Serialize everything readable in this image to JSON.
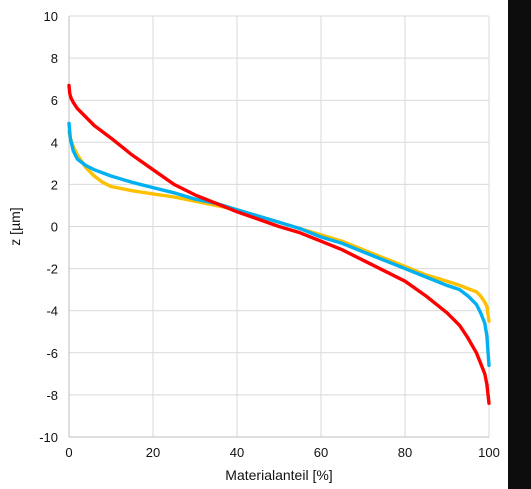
{
  "chart_data": {
    "type": "line",
    "title": "",
    "xlabel": "Materialanteil [%]",
    "ylabel": "z [µm]",
    "xlim": [
      0,
      100
    ],
    "ylim": [
      -10,
      10
    ],
    "xticks": [
      0,
      20,
      40,
      60,
      80,
      100
    ],
    "yticks": [
      -10,
      -8,
      -6,
      -4,
      -2,
      0,
      2,
      4,
      6,
      8,
      10
    ],
    "grid": true,
    "legend": "none",
    "series": [
      {
        "color": "#ffc000",
        "x": [
          0,
          0.3,
          1,
          2,
          3,
          4,
          6,
          8,
          10,
          15,
          20,
          25,
          30,
          35,
          40,
          45,
          50,
          55,
          60,
          65,
          70,
          75,
          80,
          85,
          90,
          93,
          95,
          97,
          98,
          99,
          99.5,
          100
        ],
        "y": [
          4.5,
          4.2,
          3.8,
          3.4,
          3.1,
          2.8,
          2.4,
          2.1,
          1.9,
          1.7,
          1.55,
          1.4,
          1.2,
          1.0,
          0.8,
          0.5,
          0.2,
          -0.1,
          -0.4,
          -0.7,
          -1.1,
          -1.5,
          -1.9,
          -2.3,
          -2.6,
          -2.8,
          -2.95,
          -3.1,
          -3.3,
          -3.6,
          -3.8,
          -4.5
        ]
      },
      {
        "color": "#00b0f0",
        "x": [
          0,
          0.3,
          1,
          2,
          4,
          6,
          10,
          15,
          20,
          25,
          30,
          35,
          40,
          45,
          50,
          55,
          60,
          65,
          70,
          75,
          80,
          85,
          90,
          93,
          95,
          97,
          98,
          99,
          99.5,
          100
        ],
        "y": [
          4.9,
          4.2,
          3.6,
          3.2,
          2.9,
          2.7,
          2.4,
          2.1,
          1.85,
          1.6,
          1.3,
          1.1,
          0.8,
          0.5,
          0.2,
          -0.1,
          -0.5,
          -0.8,
          -1.2,
          -1.6,
          -2.0,
          -2.4,
          -2.8,
          -3.0,
          -3.3,
          -3.7,
          -4.1,
          -4.6,
          -5.2,
          -6.6
        ]
      },
      {
        "color": "#ff0000",
        "x": [
          0,
          0.2,
          0.5,
          1,
          2,
          4,
          6,
          10,
          15,
          20,
          25,
          30,
          35,
          40,
          45,
          50,
          55,
          60,
          65,
          70,
          75,
          80,
          85,
          90,
          93,
          95,
          97,
          98,
          99,
          99.5,
          100
        ],
        "y": [
          6.7,
          6.3,
          6.1,
          5.9,
          5.6,
          5.2,
          4.8,
          4.2,
          3.4,
          2.7,
          2.0,
          1.5,
          1.1,
          0.7,
          0.35,
          0.0,
          -0.3,
          -0.7,
          -1.1,
          -1.6,
          -2.1,
          -2.6,
          -3.3,
          -4.1,
          -4.7,
          -5.3,
          -6.0,
          -6.5,
          -7.0,
          -7.5,
          -8.4
        ]
      }
    ]
  }
}
